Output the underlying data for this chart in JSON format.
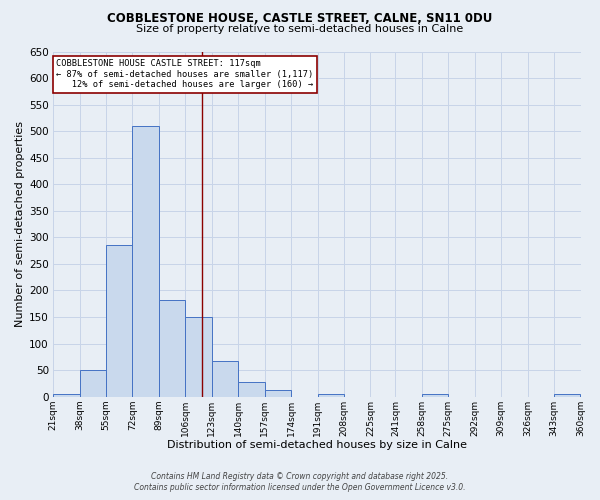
{
  "title_line1": "COBBLESTONE HOUSE, CASTLE STREET, CALNE, SN11 0DU",
  "title_line2": "Size of property relative to semi-detached houses in Calne",
  "xlabel": "Distribution of semi-detached houses by size in Calne",
  "ylabel": "Number of semi-detached properties",
  "bins": [
    21,
    38,
    55,
    72,
    89,
    106,
    123,
    140,
    157,
    174,
    191,
    208,
    225,
    241,
    258,
    275,
    292,
    309,
    326,
    343,
    360
  ],
  "counts": [
    5,
    50,
    285,
    510,
    182,
    150,
    68,
    28,
    12,
    0,
    5,
    0,
    0,
    0,
    5,
    0,
    0,
    0,
    0,
    5
  ],
  "bar_facecolor": "#c9d9ed",
  "bar_edgecolor": "#4472c4",
  "grid_color": "#c8d4e8",
  "background_color": "#e8eef5",
  "vline_x": 117,
  "vline_color": "#8b0000",
  "annotation_box_text": "COBBLESTONE HOUSE CASTLE STREET: 117sqm\n← 87% of semi-detached houses are smaller (1,117)\n   12% of semi-detached houses are larger (160) →",
  "annotation_box_edgecolor": "#8b0000",
  "annotation_box_facecolor": "white",
  "ylim": [
    0,
    650
  ],
  "yticks": [
    0,
    50,
    100,
    150,
    200,
    250,
    300,
    350,
    400,
    450,
    500,
    550,
    600,
    650
  ],
  "xtick_labels": [
    "21sqm",
    "38sqm",
    "55sqm",
    "72sqm",
    "89sqm",
    "106sqm",
    "123sqm",
    "140sqm",
    "157sqm",
    "174sqm",
    "191sqm",
    "208sqm",
    "225sqm",
    "241sqm",
    "258sqm",
    "275sqm",
    "292sqm",
    "309sqm",
    "326sqm",
    "343sqm",
    "360sqm"
  ],
  "footnote_line1": "Contains HM Land Registry data © Crown copyright and database right 2025.",
  "footnote_line2": "Contains public sector information licensed under the Open Government Licence v3.0."
}
